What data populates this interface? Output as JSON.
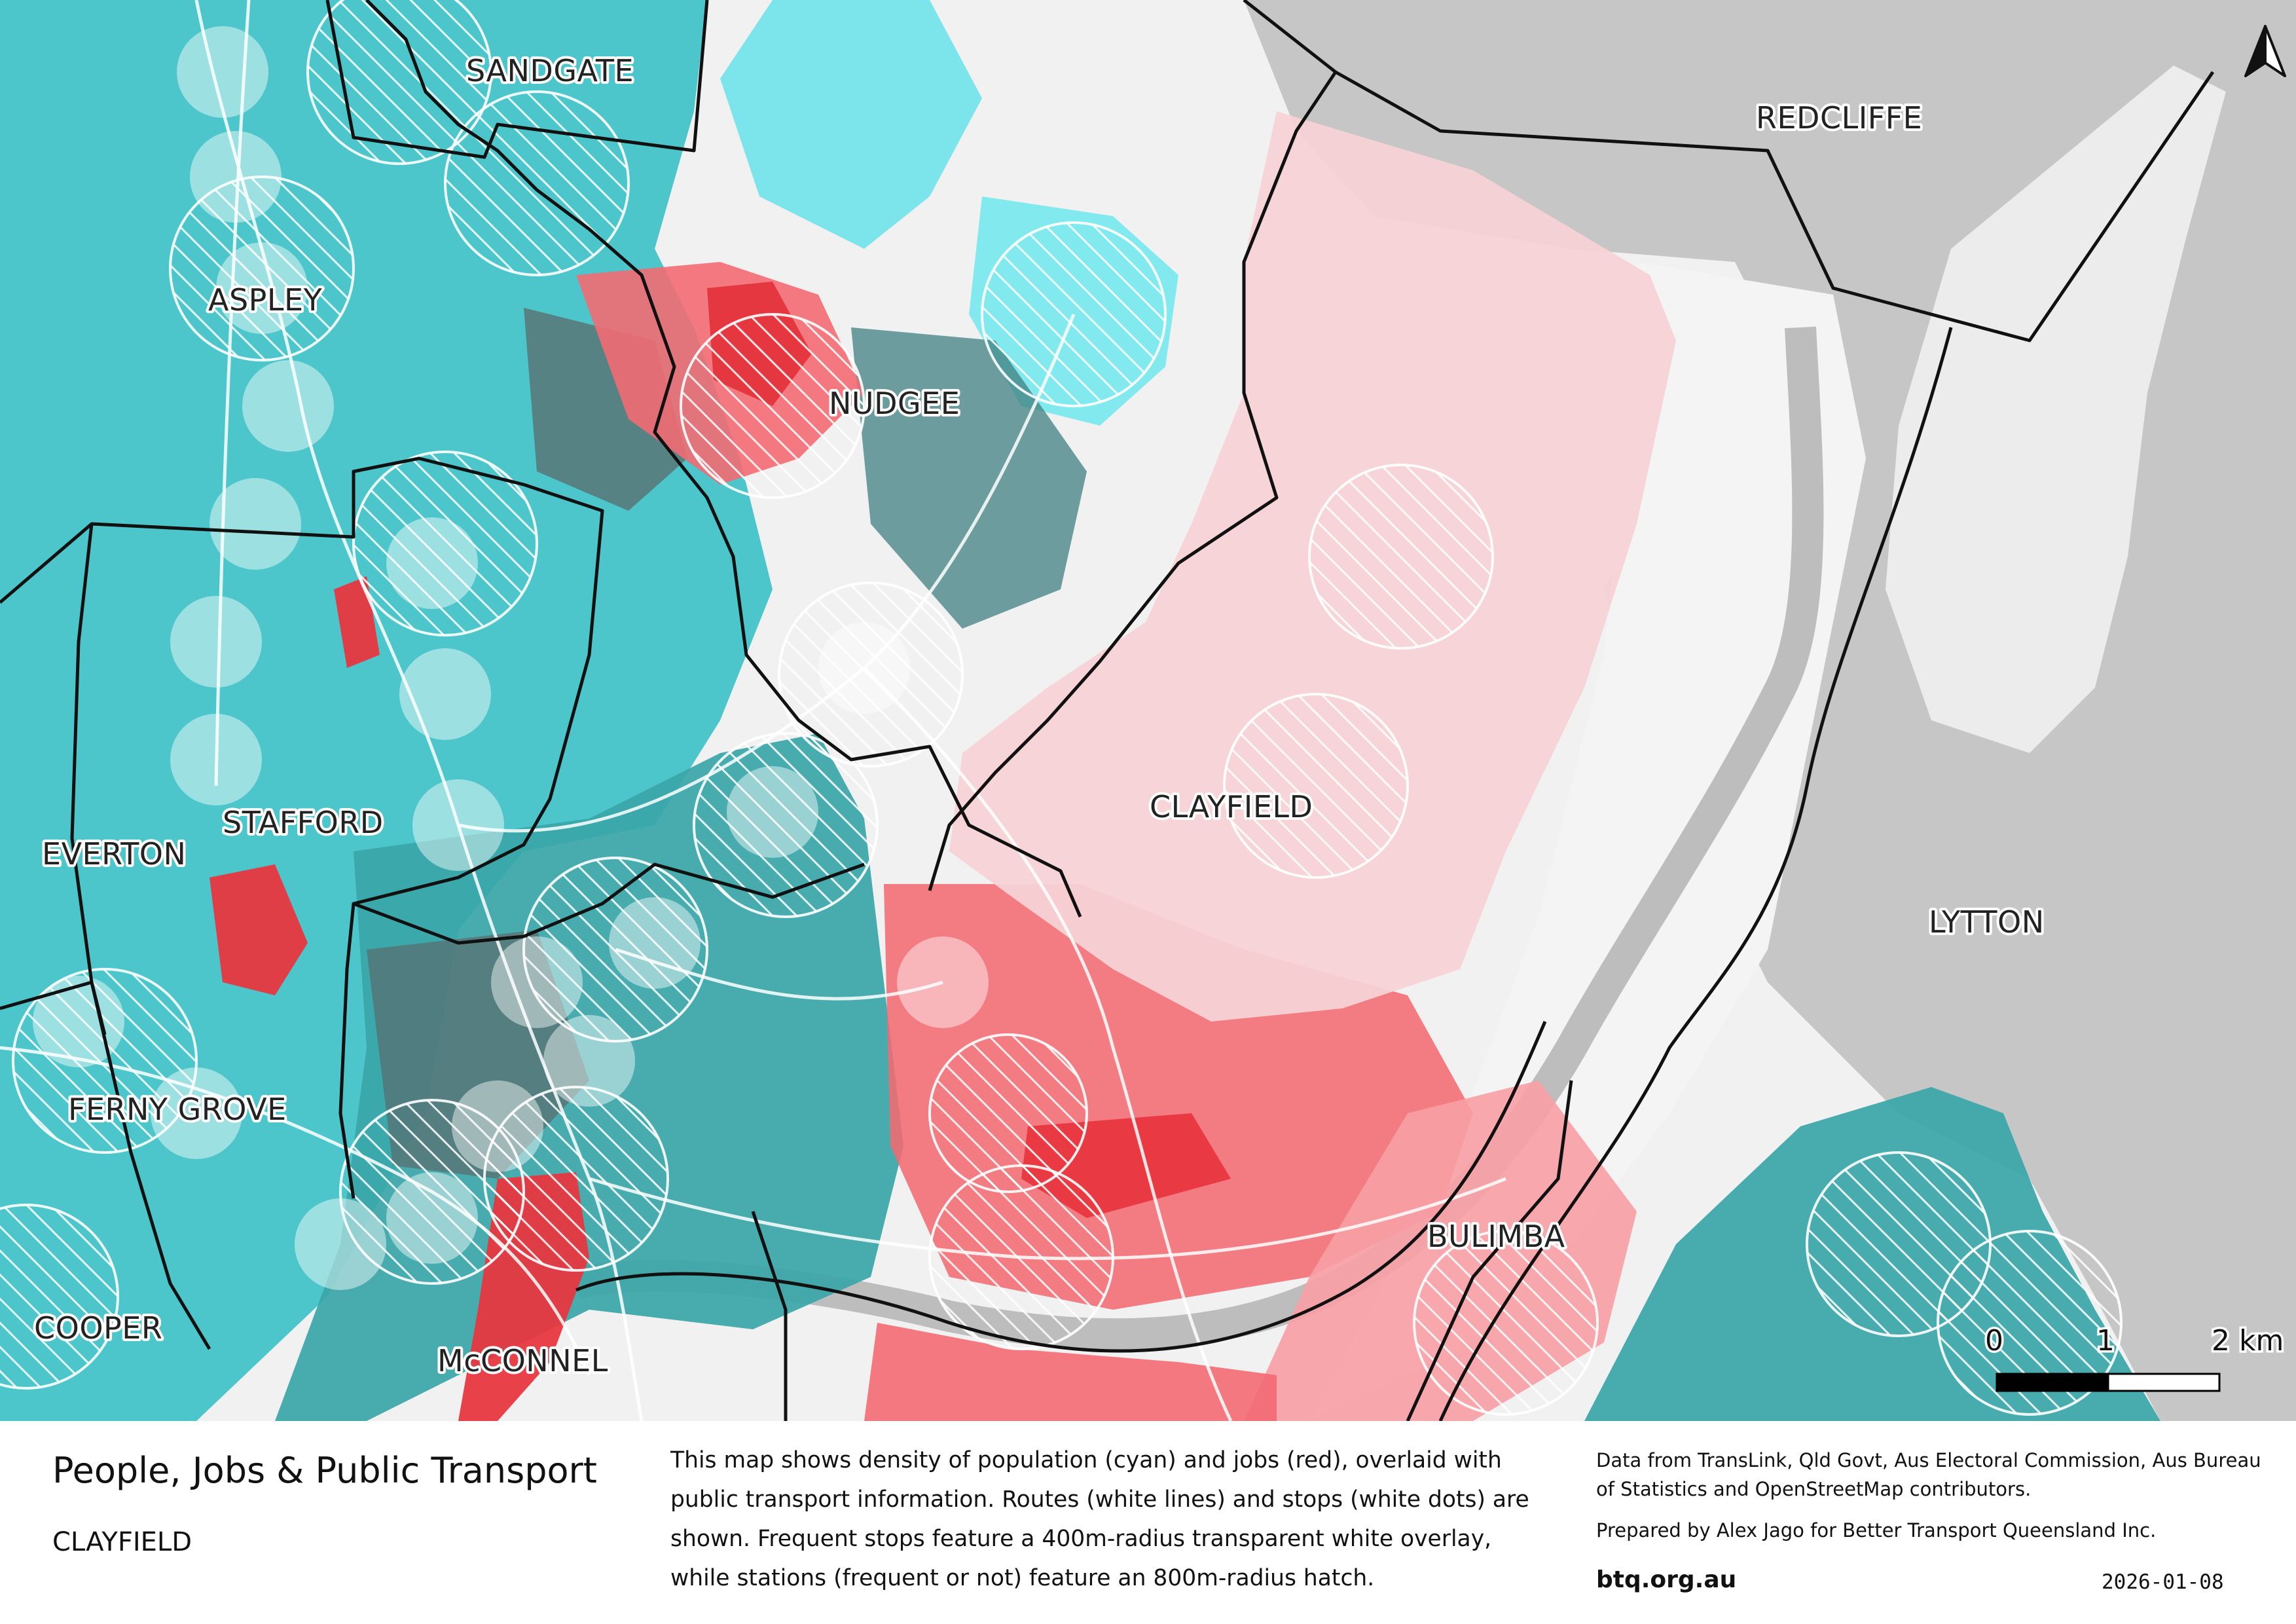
{
  "map": {
    "place_labels": [
      "SANDGATE",
      "REDCLIFFE",
      "ASPLEY",
      "NUDGEE",
      "STAFFORD",
      "EVERTON",
      "CLAYFIELD",
      "LYTTON",
      "FERNY GROVE",
      "BULIMBA",
      "COOPER",
      "McCONNEL"
    ],
    "scale_bar": {
      "tick_0": "0",
      "tick_1": "1",
      "tick_2": "2 km"
    },
    "north_arrow": "north-arrow-icon",
    "colors": {
      "population": "#3fc2c8",
      "jobs": "#f0606a",
      "water": "#c9c9c9",
      "base": "#f2f2f2",
      "boundary": "#111111"
    }
  },
  "footer": {
    "title": "People, Jobs & Public Transport",
    "subtitle": "CLAYFIELD",
    "description": "This map shows density of population (cyan) and jobs (red), overlaid with public transport information. Routes (white lines) and stops (white dots) are shown. Frequent stops feature a 400m-radius transparent white overlay, while stations (frequent or not) feature an 800m-radius hatch.",
    "credits": "Data from TransLink,  Qld Govt,  Aus Electoral Commission, Aus Bureau of Statistics and OpenStreetMap contributors.",
    "prepared_by": "Prepared by Alex Jago for Better Transport Queensland Inc.",
    "website": "btq.org.au",
    "date": "2026-01-08"
  }
}
